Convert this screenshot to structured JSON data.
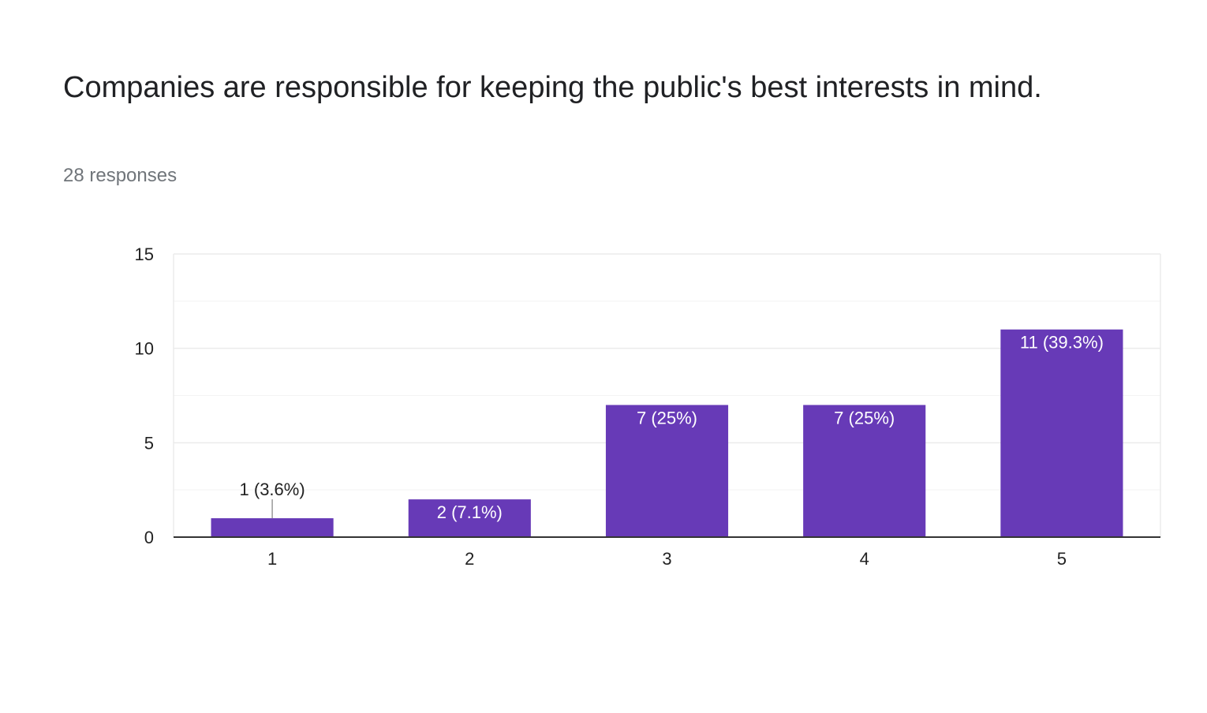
{
  "question": {
    "title": "Companies are responsible for keeping the public's best interests in mind.",
    "responses": "28 responses"
  },
  "colors": {
    "bar": "#673ab7",
    "grid": "#ebebeb",
    "axis": "#333333",
    "label_inside": "#ffffff",
    "label_outside": "#222222"
  },
  "chart_data": {
    "type": "bar",
    "categories": [
      "1",
      "2",
      "3",
      "4",
      "5"
    ],
    "values": [
      1,
      2,
      7,
      7,
      11
    ],
    "data_labels": [
      "1 (3.6%)",
      "2 (7.1%)",
      "7 (25%)",
      "7 (25%)",
      "11 (39.3%)"
    ],
    "ylim": [
      0,
      15
    ],
    "yticks": [
      0,
      5,
      10,
      15
    ],
    "minor_gridlines": true,
    "legend": "none"
  }
}
